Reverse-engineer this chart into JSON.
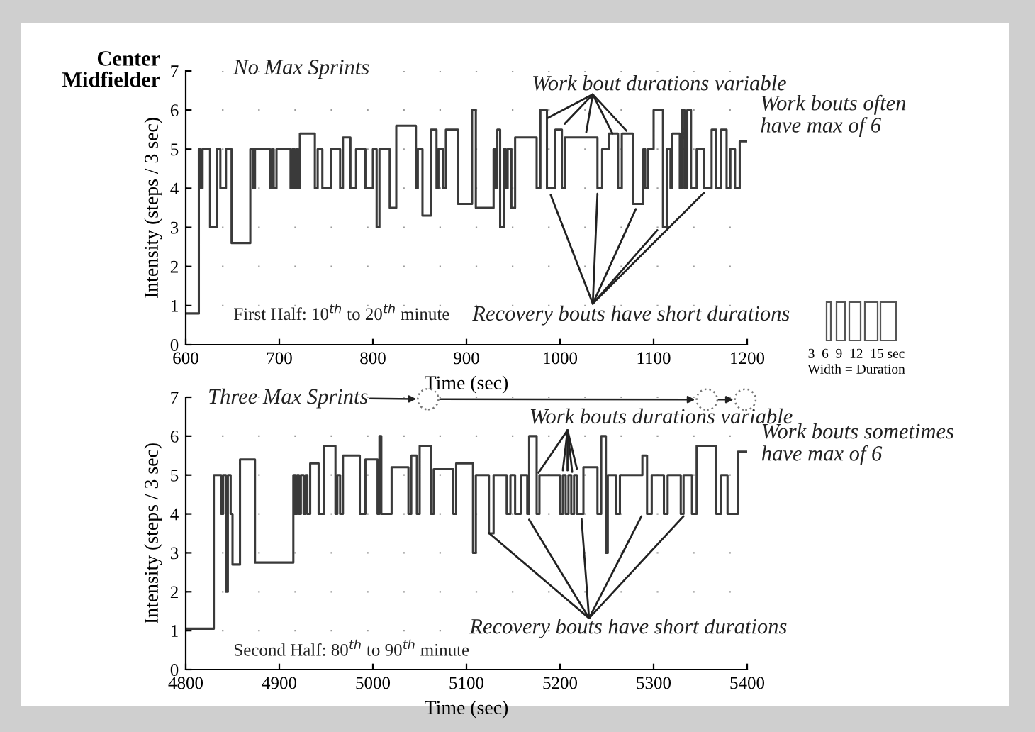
{
  "chart_data": [
    {
      "type": "step",
      "title": "Center\nMidfielder",
      "xlabel": "Time (sec)",
      "ylabel": "Intensity (steps / 3 sec)",
      "xlim": [
        600,
        1200
      ],
      "xticks": [
        600,
        700,
        800,
        900,
        1000,
        1100,
        1200
      ],
      "ylim": [
        0,
        7
      ],
      "yticks": [
        0,
        1,
        2,
        3,
        4,
        5,
        6,
        7
      ],
      "grid": "y",
      "series": [
        {
          "color": "#3a3a3a",
          "x": [
            600,
            614,
            616,
            618,
            626,
            633,
            637,
            643,
            649,
            669,
            672,
            674,
            690,
            692,
            694,
            697,
            712,
            714,
            716,
            718,
            720,
            722,
            738,
            741,
            746,
            755,
            765,
            768,
            776,
            782,
            792,
            800,
            804,
            807,
            818,
            825,
            846,
            848,
            853,
            862,
            868,
            870,
            875,
            878,
            891,
            906,
            910,
            929,
            931,
            933,
            936,
            940,
            942,
            944,
            948,
            952,
            975,
            979,
            986,
            995,
            1002,
            1005,
            1040,
            1045,
            1052,
            1062,
            1066,
            1078,
            1089,
            1091,
            1094,
            1100,
            1110,
            1114,
            1118,
            1120,
            1128,
            1130,
            1133,
            1136,
            1140,
            1146,
            1154,
            1162,
            1167,
            1172,
            1178,
            1182,
            1187,
            1192,
            1200
          ],
          "values": [
            0.8,
            5,
            4,
            5,
            3,
            5,
            4,
            5,
            2.6,
            5,
            4,
            5,
            4,
            5,
            4,
            5,
            4,
            5,
            4,
            5,
            4,
            5.4,
            4,
            5,
            4,
            5,
            4,
            5.3,
            4,
            5,
            4,
            5,
            3,
            5,
            3.5,
            5.6,
            4,
            5,
            3.3,
            5.5,
            4,
            5,
            4,
            5.5,
            3.6,
            6,
            3.5,
            5,
            4,
            5.5,
            3,
            5,
            4,
            5,
            3.5,
            5.3,
            4,
            6,
            4,
            5.5,
            4,
            5.3,
            4,
            5,
            5.4,
            4,
            5.4,
            3.6,
            5,
            4,
            5,
            6,
            3,
            5,
            4,
            5.4,
            4,
            6,
            4,
            6,
            4,
            5,
            4,
            5.5,
            4,
            5.5,
            4,
            5,
            4,
            5.2,
            5.2
          ]
        }
      ],
      "annotations": [
        "No Max Sprints",
        "First Half: 10$^{th}$ to 20$^{th}$ minute",
        {
          "text": "Work bout durations variable",
          "x": 987,
          "y": 5.8
        },
        {
          "text": "Recovery bouts have short durations",
          "x": 990,
          "y": 3.83
        },
        "Work bouts often\nhave max of 6",
        "3  6  9  12  15 sec",
        "Width = Duration"
      ]
    },
    {
      "type": "step",
      "xlabel": "Time (sec)",
      "ylabel": "Intensity (steps / 3 sec)",
      "xlim": [
        4800,
        5400
      ],
      "xticks": [
        4800,
        4900,
        5000,
        5100,
        5200,
        5300,
        5400
      ],
      "ylim": [
        0,
        7
      ],
      "yticks": [
        0,
        1,
        2,
        3,
        4,
        5,
        6,
        7
      ],
      "grid": "y",
      "series": [
        {
          "color": "#3a3a3a",
          "x": [
            4800,
            4830,
            4838,
            4840,
            4843,
            4845,
            4848,
            4850,
            4858,
            4874,
            4915,
            4917,
            4919,
            4921,
            4923,
            4926,
            4928,
            4930,
            4933,
            4942,
            4948,
            4960,
            4962,
            4965,
            4968,
            4986,
            4992,
            5005,
            5007,
            5009,
            5020,
            5038,
            5041,
            5047,
            5050,
            5062,
            5065,
            5086,
            5089,
            5107,
            5110,
            5124,
            5129,
            5143,
            5147,
            5152,
            5158,
            5165,
            5167,
            5175,
            5178,
            5200,
            5203,
            5206,
            5209,
            5212,
            5215,
            5218,
            5225,
            5240,
            5244,
            5249,
            5251,
            5260,
            5264,
            5288,
            5293,
            5298,
            5311,
            5315,
            5329,
            5332,
            5341,
            5346,
            5367,
            5372,
            5379,
            5390,
            5400
          ],
          "values": [
            1.05,
            5,
            4,
            5,
            2,
            5,
            4,
            2.7,
            5.4,
            2.75,
            5,
            4,
            5,
            4,
            5,
            4,
            5,
            4,
            5.3,
            4,
            5.75,
            4,
            5,
            4,
            5.5,
            4,
            5.4,
            4,
            6,
            4,
            5.2,
            4,
            5.5,
            4,
            5.75,
            4,
            5.15,
            4,
            5.3,
            3,
            5,
            3.5,
            5,
            4,
            5,
            4,
            5,
            4,
            6,
            4,
            5,
            4,
            5,
            4,
            5,
            4,
            5,
            4,
            5.2,
            4,
            6,
            3,
            5,
            4,
            5,
            5.5,
            4,
            5,
            4,
            5,
            4,
            5,
            4,
            5.75,
            4,
            5,
            4,
            5.6,
            5.6
          ]
        }
      ],
      "annotations": [
        {
          "text": "Three Max Sprints",
          "x": 5059,
          "y": 6.95
        },
        "Second Half: 80$^{th}$ to 90$^{th}$ minute",
        {
          "text": "Work bouts durations variable",
          "x": 5177,
          "y": 5.06
        },
        {
          "text": "Recovery bouts have short durations",
          "x": 5124,
          "y": 3.51
        },
        "Work bouts sometimes\nhave max of 6"
      ]
    }
  ]
}
